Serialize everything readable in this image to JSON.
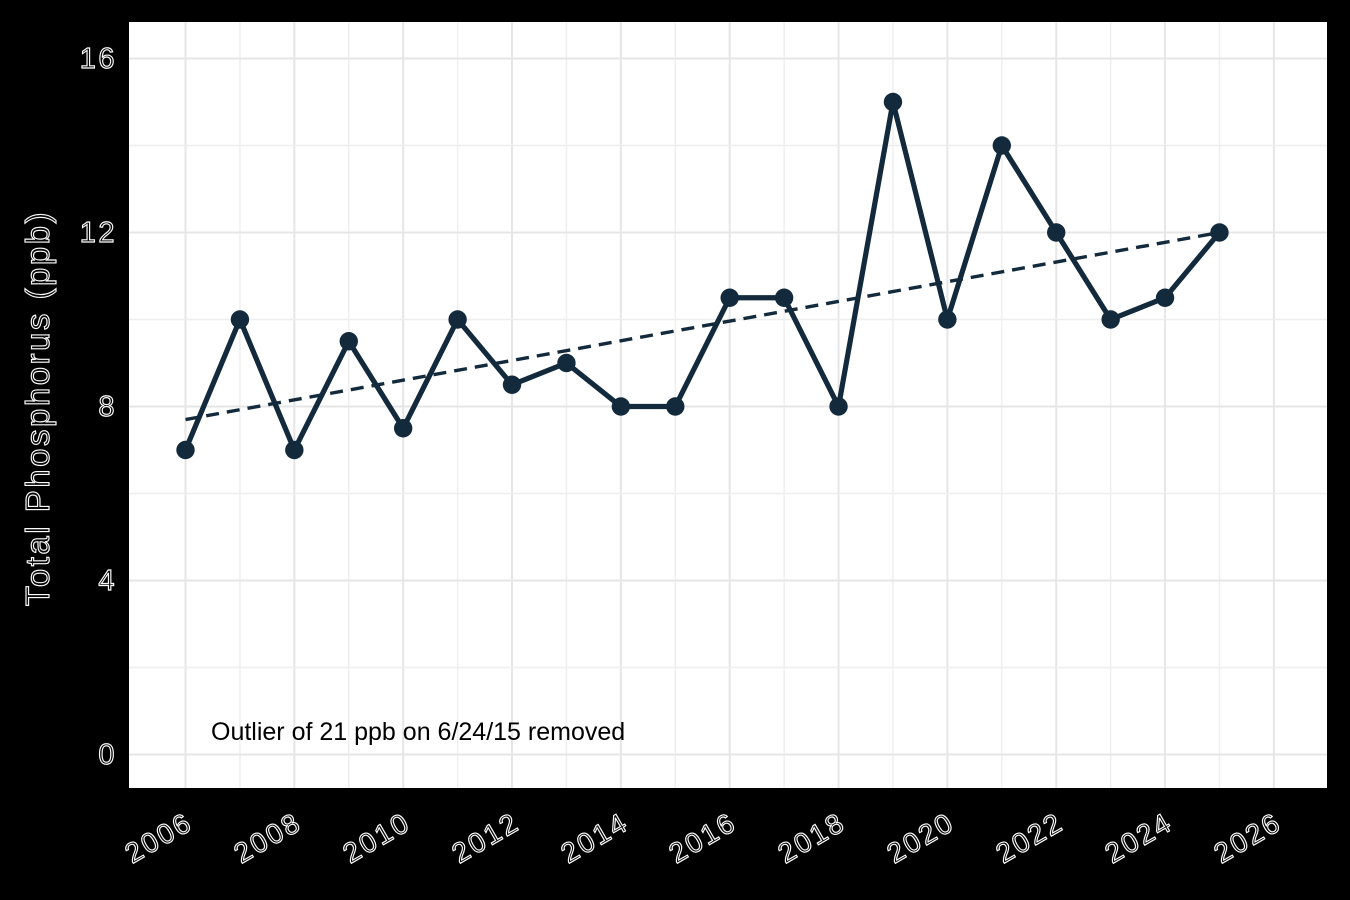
{
  "chart_data": {
    "type": "line",
    "title": "",
    "xlabel": "",
    "ylabel": "Total Phosphorus (ppb)",
    "annotation": "Outlier of 21 ppb on 6/24/15 removed",
    "x": [
      2006,
      2007,
      2008,
      2009,
      2010,
      2011,
      2012,
      2013,
      2014,
      2015,
      2016,
      2017,
      2018,
      2019,
      2020,
      2021,
      2022,
      2023,
      2024,
      2025
    ],
    "values": [
      7,
      10,
      7,
      9.5,
      7.5,
      10,
      8.5,
      9,
      8,
      8,
      10.5,
      10.5,
      8,
      15,
      10,
      14,
      12,
      10,
      10.5,
      12
    ],
    "trend_line": {
      "style": "dashed",
      "x_start": 2006,
      "y_start": 7.7,
      "x_end": 2025,
      "y_end": 12.0
    },
    "x_tick_labels": [
      "2006",
      "2008",
      "2010",
      "2012",
      "2014",
      "2016",
      "2018",
      "2020",
      "2022",
      "2024",
      "2026"
    ],
    "x_tick_years": [
      2006,
      2008,
      2010,
      2012,
      2014,
      2016,
      2018,
      2020,
      2022,
      2024,
      2026
    ],
    "y_tick_labels": [
      "0",
      "4",
      "8",
      "12",
      "16"
    ],
    "y_tick_values": [
      0,
      4,
      8,
      12,
      16
    ],
    "xlim": [
      2005,
      2027
    ],
    "ylim": [
      -0.8,
      16.8
    ],
    "grid": "on",
    "grid_minor_x_years": [
      2007,
      2009,
      2011,
      2013,
      2015,
      2017,
      2019,
      2021,
      2023,
      2025
    ],
    "grid_minor_y_values": [
      2,
      6,
      10,
      14
    ],
    "legend": "none",
    "colors": {
      "series": "#122a3c",
      "trend": "#122a3c",
      "figure_background": "#000000",
      "plot_background": "#ffffff",
      "grid_major": "#e6e6e6",
      "grid_minor": "#eeeeee",
      "tick_text_fill": "#060606",
      "tick_text_outline": "#fbfbfb",
      "annotation_text": "#000000"
    }
  }
}
